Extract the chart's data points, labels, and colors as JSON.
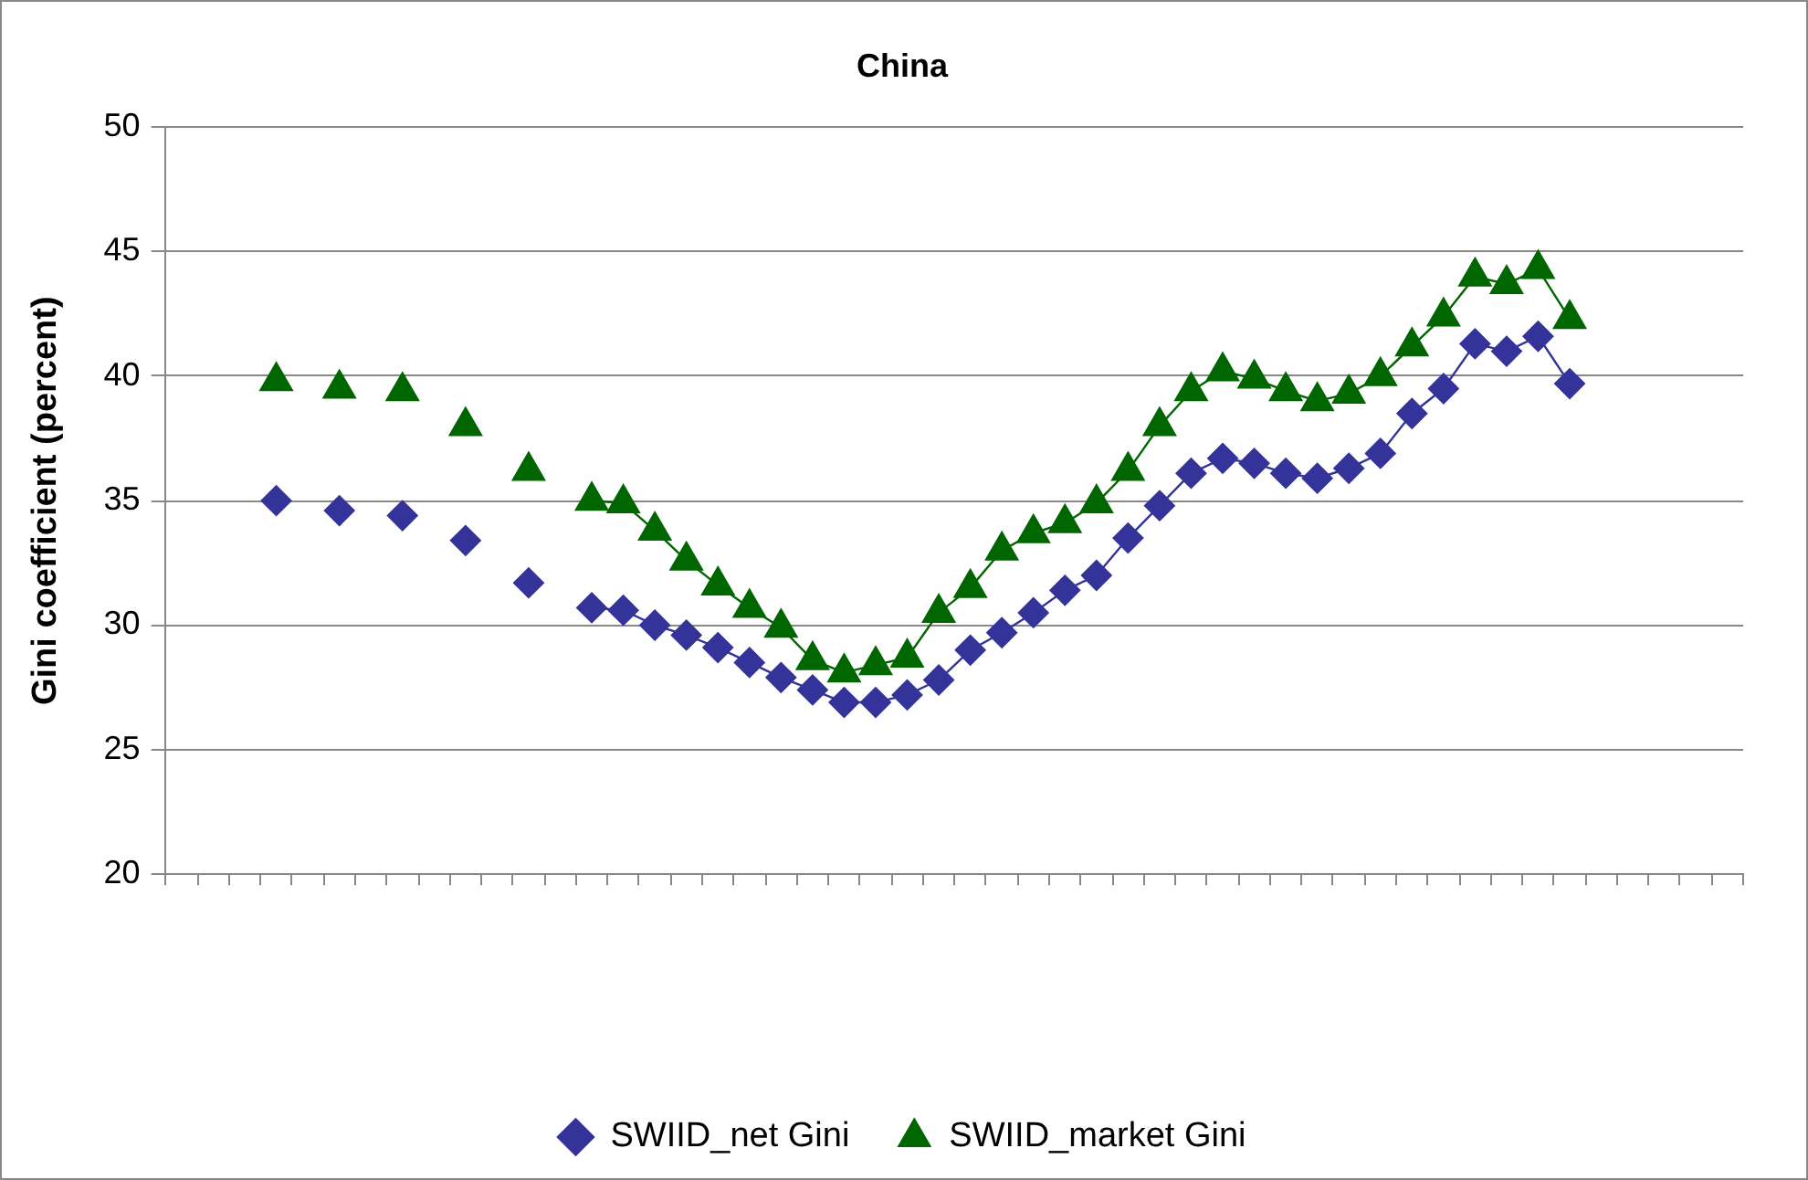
{
  "chart_data": {
    "type": "line",
    "title": "China",
    "ylabel": "Gini coefficient (percent)",
    "categories": [
      null,
      null,
      null,
      null,
      null,
      null,
      null,
      null,
      null,
      null,
      null,
      null,
      null,
      null,
      null,
      null,
      null,
      null,
      null,
      null,
      null,
      null,
      null,
      null,
      null,
      null,
      null,
      null,
      null,
      null,
      null,
      null,
      null,
      null,
      null,
      null,
      null,
      null,
      null,
      null,
      null,
      null,
      null,
      null,
      null,
      null,
      null,
      null,
      null,
      null
    ],
    "series": [
      {
        "name": "SWIID_net Gini",
        "color": "#333399",
        "marker": "diamond",
        "values": [
          null,
          null,
          null,
          null,
          null,
          null,
          null,
          null,
          null,
          null,
          null,
          null,
          null,
          30.7,
          30.6,
          30.0,
          29.6,
          29.1,
          28.5,
          27.9,
          27.4,
          26.9,
          26.9,
          27.2,
          27.8,
          29.0,
          29.7,
          30.5,
          31.4,
          32.0,
          33.5,
          34.8,
          36.1,
          36.7,
          36.5,
          36.1,
          35.9,
          36.3,
          36.9,
          38.5,
          39.5,
          41.3,
          41.0,
          41.6,
          39.7,
          null,
          null,
          null,
          null,
          null
        ]
      },
      {
        "name": "SWIID_market Gini",
        "color": "#006600",
        "marker": "triangle",
        "values": [
          null,
          null,
          null,
          null,
          null,
          null,
          null,
          null,
          null,
          null,
          null,
          null,
          null,
          35.0,
          34.9,
          33.8,
          32.6,
          31.6,
          30.7,
          29.9,
          28.6,
          28.1,
          28.4,
          28.7,
          30.5,
          31.5,
          33.0,
          33.7,
          34.1,
          34.9,
          36.2,
          38.0,
          39.4,
          40.2,
          39.9,
          39.4,
          39.0,
          39.3,
          40.0,
          41.2,
          42.4,
          44.0,
          43.7,
          44.3,
          42.3,
          null,
          null,
          null,
          null,
          null
        ]
      },
      {
        "type": "scatter",
        "color": "#333399",
        "marker": "diamond",
        "values": [
          null,
          null,
          null,
          35.0,
          null,
          34.6,
          null,
          34.4,
          null,
          33.4,
          null,
          31.7,
          null,
          null,
          null,
          null,
          null,
          null,
          null,
          null,
          null,
          null,
          null,
          null,
          null,
          null,
          null,
          null,
          null,
          null,
          null,
          null,
          null,
          null,
          null,
          null,
          null,
          null,
          null,
          null,
          null,
          null,
          null,
          null,
          null,
          null,
          null,
          null,
          null,
          null
        ]
      },
      {
        "type": "scatter",
        "color": "#006600",
        "marker": "triangle",
        "values": [
          null,
          null,
          null,
          39.8,
          null,
          39.5,
          null,
          39.4,
          null,
          38.0,
          null,
          36.2,
          null,
          null,
          null,
          null,
          null,
          null,
          null,
          null,
          null,
          null,
          null,
          null,
          null,
          null,
          null,
          null,
          null,
          null,
          null,
          null,
          null,
          null,
          null,
          null,
          null,
          null,
          null,
          null,
          null,
          null,
          null,
          null,
          null,
          null,
          null,
          null,
          null,
          null
        ]
      }
    ],
    "ylim": [
      20,
      50
    ],
    "yticks": [
      20,
      25,
      30,
      35,
      40,
      45,
      50
    ],
    "grid": "y",
    "legend": "bottom",
    "tick_labels": "y"
  }
}
